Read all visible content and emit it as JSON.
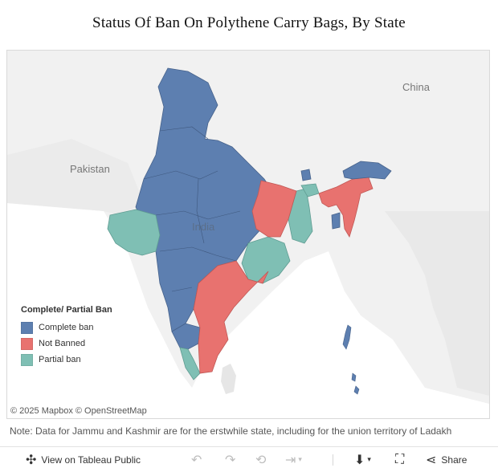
{
  "title": "Status Of Ban On Polythene Carry Bags, By State",
  "map": {
    "country_labels": {
      "china": "China",
      "pakistan": "Pakistan",
      "india": "India"
    },
    "colors": {
      "complete_ban": "#5d7fb0",
      "not_banned": "#e8726f",
      "partial_ban": "#7fbfb4",
      "land": "#e6e6e6",
      "water": "#ffffff",
      "background": "#f1f1f1"
    },
    "legend": {
      "title": "Complete/ Partial Ban",
      "items": [
        {
          "label": "Complete ban",
          "color": "#5d7fb0"
        },
        {
          "label": "Not Banned",
          "color": "#e8726f"
        },
        {
          "label": "Partial ban",
          "color": "#7fbfb4"
        }
      ]
    },
    "attribution": "© 2025 Mapbox  © OpenStreetMap"
  },
  "note": "Note: Data for Jammu and Kashmir are for the erstwhile state, including for the union territory of Ladakh",
  "toolbar": {
    "view_label": "View on Tableau Public",
    "share_label": "Share",
    "icons": [
      "tableau-logo-icon",
      "undo-icon",
      "redo-icon",
      "revert-icon",
      "pause-icon",
      "download-icon",
      "fullscreen-icon",
      "share-icon"
    ]
  }
}
